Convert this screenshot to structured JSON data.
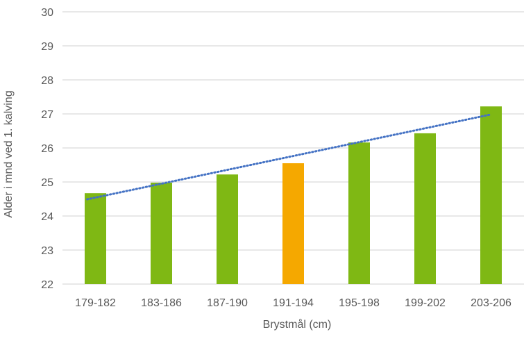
{
  "chart_data": {
    "type": "bar",
    "title": "",
    "xlabel": "Brystmål  (cm)",
    "ylabel": "Alder i mnd ved 1. kalving",
    "ylim": [
      22,
      30
    ],
    "yticks": [
      22,
      23,
      24,
      25,
      26,
      27,
      28,
      29,
      30
    ],
    "categories": [
      "179-182",
      "183-186",
      "187-190",
      "191-194",
      "195-198",
      "199-202",
      "203-206"
    ],
    "values": [
      24.67,
      24.98,
      25.22,
      25.55,
      26.16,
      26.43,
      27.22
    ],
    "colors": [
      "#7fb814",
      "#7fb814",
      "#7fb814",
      "#f5a800",
      "#7fb814",
      "#7fb814",
      "#7fb814"
    ],
    "trendline": {
      "type": "linear",
      "color": "#4472c4",
      "start": 24.49,
      "end": 26.98
    },
    "grid": true
  }
}
